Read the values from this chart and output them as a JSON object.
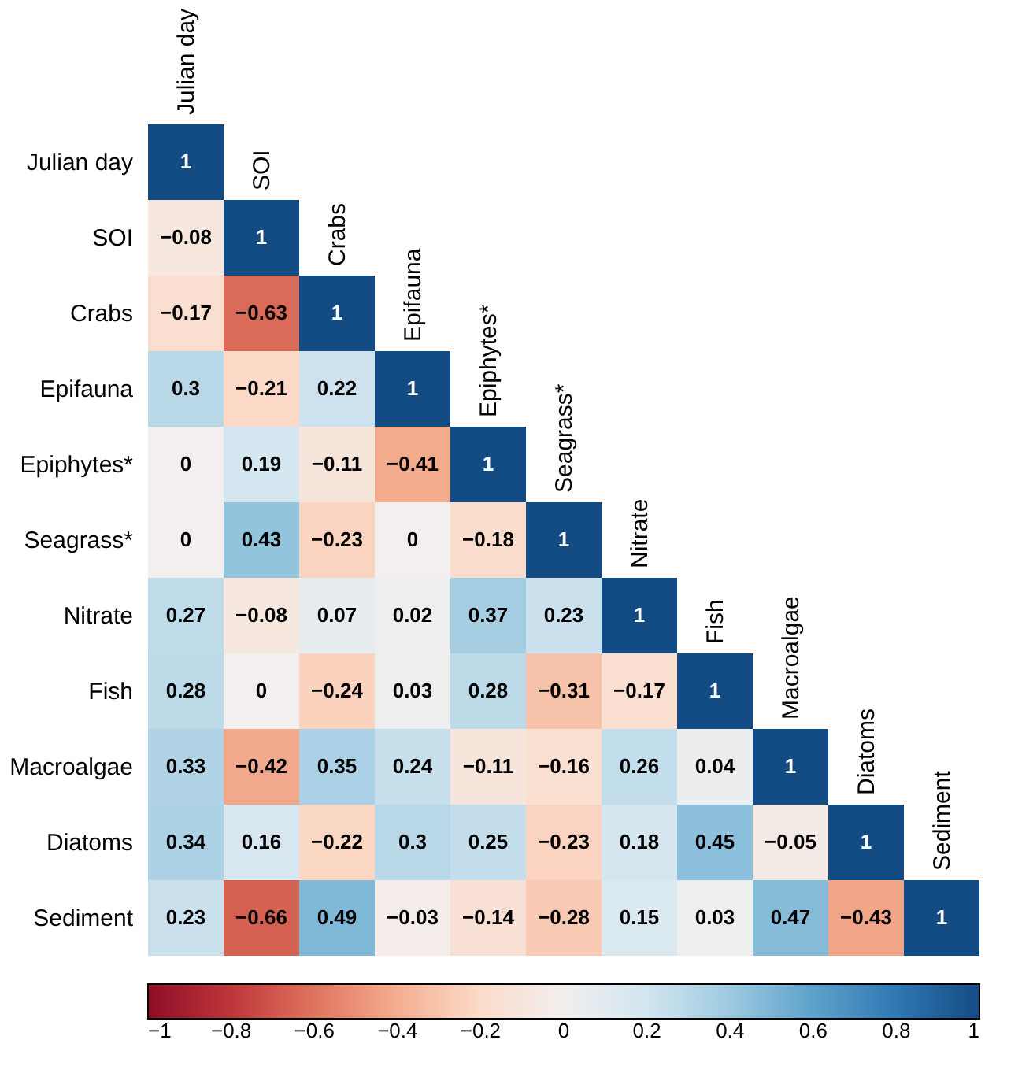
{
  "chart_data": {
    "type": "heatmap",
    "categories": [
      "Julian day",
      "SOI",
      "Crabs",
      "Epifauna",
      "Epiphytes*",
      "Seagrass*",
      "Nitrate",
      "Fish",
      "Macroalgae",
      "Diatoms",
      "Sediment"
    ],
    "y_categories": [
      "Julian day",
      "SOI",
      "Crabs",
      "Epifauna",
      "Epiphytes*",
      "Seagrass*",
      "Nitrate",
      "Fish",
      "Macroalgae",
      "Diatoms",
      "Sediment"
    ],
    "cells": [
      [
        1,
        null,
        null,
        null,
        null,
        null,
        null,
        null,
        null,
        null,
        null
      ],
      [
        -0.08,
        1,
        null,
        null,
        null,
        null,
        null,
        null,
        null,
        null,
        null
      ],
      [
        -0.17,
        -0.63,
        1,
        null,
        null,
        null,
        null,
        null,
        null,
        null,
        null
      ],
      [
        0.3,
        -0.21,
        0.22,
        1,
        null,
        null,
        null,
        null,
        null,
        null,
        null
      ],
      [
        0,
        0.19,
        -0.11,
        -0.41,
        1,
        null,
        null,
        null,
        null,
        null,
        null
      ],
      [
        0,
        0.43,
        -0.23,
        0,
        -0.18,
        1,
        null,
        null,
        null,
        null,
        null
      ],
      [
        0.27,
        -0.08,
        0.07,
        0.02,
        0.37,
        0.23,
        1,
        null,
        null,
        null,
        null
      ],
      [
        0.28,
        0,
        -0.24,
        0.03,
        0.28,
        -0.31,
        -0.17,
        1,
        null,
        null,
        null
      ],
      [
        0.33,
        -0.42,
        0.35,
        0.24,
        -0.11,
        -0.16,
        0.26,
        0.04,
        1,
        null,
        null
      ],
      [
        0.34,
        0.16,
        -0.22,
        0.3,
        0.25,
        -0.23,
        0.18,
        0.45,
        -0.05,
        1,
        null
      ],
      [
        0.23,
        -0.66,
        0.49,
        -0.03,
        -0.14,
        -0.28,
        0.15,
        0.03,
        0.47,
        -0.43,
        1
      ]
    ],
    "data_labels": true,
    "clim": [
      -1,
      1
    ],
    "cticks": [
      -1,
      -0.8,
      -0.6,
      -0.4,
      -0.2,
      0,
      0.2,
      0.4,
      0.6,
      0.8,
      1
    ]
  }
}
